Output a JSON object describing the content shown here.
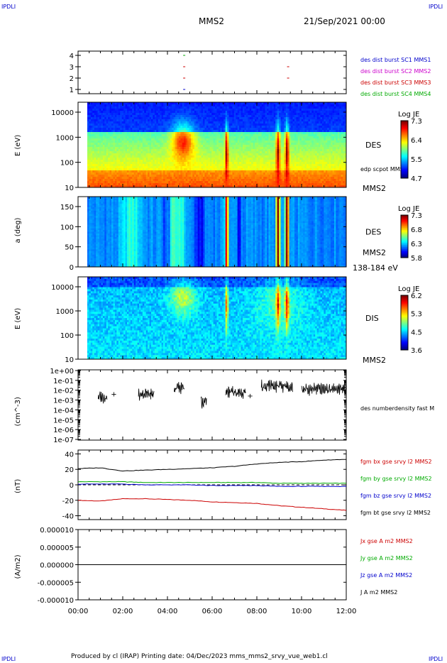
{
  "header": {
    "corner_left_top": "IPDLI",
    "corner_right_top": "IPDLI",
    "corner_left_bottom": "IPDLI",
    "corner_right_bottom": "IPDLI",
    "spacecraft": "MMS2",
    "date": "21/Sep/2021 00:00"
  },
  "footer": {
    "text": "Produced by cl (IRAP)   Printing date: 04/Dec/2023   mms_mms2_srvy_vue_web1.cl"
  },
  "colors": {
    "blue": "#0000cc",
    "magenta": "#cc00cc",
    "red": "#cc0000",
    "green": "#00aa00",
    "black": "#000000"
  },
  "chart_data": [
    {
      "type": "scatter",
      "panel": "burst",
      "y_ticks": [
        "4",
        "3",
        "2",
        "1"
      ],
      "legend": [
        {
          "label": "des dist burst SC1 MMS1",
          "color": "#0000cc"
        },
        {
          "label": "des dist burst SC2 MMS2",
          "color": "#cc00cc"
        },
        {
          "label": "des dist burst SC3 MMS3",
          "color": "#cc0000"
        },
        {
          "label": "des dist burst SC4 MMS4",
          "color": "#00aa00"
        }
      ],
      "marks": [
        {
          "t": 4.75,
          "sc": 4,
          "color": "#00aa00"
        },
        {
          "t": 4.75,
          "sc": 3,
          "color": "#cc0000"
        },
        {
          "t": 4.75,
          "sc": 2,
          "color": "#cc0000"
        },
        {
          "t": 4.75,
          "sc": 1,
          "color": "#0000cc"
        },
        {
          "t": 9.4,
          "sc": 3,
          "color": "#cc0000"
        },
        {
          "t": 9.4,
          "sc": 2,
          "color": "#cc0000"
        }
      ]
    },
    {
      "type": "heatmap",
      "panel": "des-energy",
      "ylabel": "E (eV)",
      "y_ticks": [
        "10000",
        "1000",
        "100",
        "10"
      ],
      "label_right": "DES",
      "label_right2": "edp scpot MMS2",
      "label_bottom": "MMS2",
      "colorbar": {
        "title": "Log JE",
        "ticks": [
          "7.3",
          "6.4",
          "5.5",
          "4.7"
        ]
      }
    },
    {
      "type": "heatmap",
      "panel": "des-pitch",
      "ylabel": "a (deg)",
      "y_ticks": [
        "150",
        "100",
        "50",
        "0"
      ],
      "label_right": "DES",
      "label_right2": "MMS2",
      "label_bottom": "138-184 eV",
      "colorbar": {
        "title": "Log JE",
        "ticks": [
          "7.3",
          "6.8",
          "6.3",
          "5.8"
        ]
      }
    },
    {
      "type": "heatmap",
      "panel": "dis-energy",
      "ylabel": "E (eV)",
      "y_ticks": [
        "10000",
        "1000",
        "100",
        "10"
      ],
      "label_right": "DIS",
      "label_bottom": "MMS2",
      "colorbar": {
        "title": "Log JE",
        "ticks": [
          "6.2",
          "5.3",
          "4.5",
          "3.6"
        ]
      }
    },
    {
      "type": "line",
      "panel": "density",
      "ylabel": "(cm^-3)",
      "y_ticks": [
        "1e+00",
        "1e-01",
        "1e-02",
        "1e-03",
        "1e-04",
        "1e-05",
        "1e-06",
        "1e-07"
      ],
      "series": [
        {
          "name": "des numberdensity fast M",
          "color": "#000000"
        }
      ],
      "segments": [
        {
          "start": 0.9,
          "end": 1.3,
          "log_center": -2.7
        },
        {
          "start": 2.7,
          "end": 3.4,
          "log_center": -2.4
        },
        {
          "start": 4.3,
          "end": 4.75,
          "log_center": -1.8
        },
        {
          "start": 5.5,
          "end": 5.75,
          "log_center": -3.2
        },
        {
          "start": 6.6,
          "end": 7.5,
          "log_center": -2.2
        },
        {
          "start": 8.2,
          "end": 9.6,
          "log_center": -1.6
        },
        {
          "start": 10.0,
          "end": 12.0,
          "log_center": -1.9
        }
      ],
      "crosses": [
        {
          "t": 1.6,
          "log_n": -2.4
        },
        {
          "t": 7.7,
          "log_n": -2.6
        }
      ]
    },
    {
      "type": "line",
      "panel": "magnetic-field",
      "ylabel": "(nT)",
      "ylim": [
        -45,
        45
      ],
      "y_ticks": [
        "40",
        "20",
        "0",
        "-20",
        "-40"
      ],
      "x": [
        0,
        1,
        2,
        3,
        4,
        5,
        6,
        7,
        8,
        9,
        10,
        11,
        12
      ],
      "series": [
        {
          "name": "fgm bx gse srvy l2 MMS2",
          "color": "#cc0000",
          "values": [
            -20,
            -21,
            -18,
            -18,
            -19,
            -20,
            -22,
            -23,
            -24,
            -27,
            -29,
            -31,
            -33
          ]
        },
        {
          "name": "fgm by gse srvy l2 MMS2",
          "color": "#00aa00",
          "values": [
            4,
            4,
            4,
            3,
            3,
            3,
            3,
            3,
            3,
            2,
            2,
            2,
            2
          ]
        },
        {
          "name": "fgm bz gse srvy l2 MMS2",
          "color": "#0000cc",
          "values": [
            1,
            1,
            1,
            0,
            0,
            0,
            -1,
            -1,
            -1,
            -2,
            -2,
            -2,
            -2
          ]
        },
        {
          "name": "fgm bt gse srvy l2 MMS2",
          "color": "#000000",
          "values": [
            21,
            22,
            18,
            19,
            20,
            21,
            22,
            24,
            27,
            29,
            30,
            32,
            33
          ]
        }
      ]
    },
    {
      "type": "line",
      "panel": "current",
      "ylabel": "(A/m2)",
      "ylim": [
        -1e-05,
        1e-05
      ],
      "y_ticks": [
        "0.000010",
        "0.000005",
        "0.000000",
        "-0.000005",
        "-0.000010"
      ],
      "series": [
        {
          "name": "Jx gse A m2 MMS2",
          "color": "#cc0000"
        },
        {
          "name": "Jy gse A m2 MMS2",
          "color": "#00aa00"
        },
        {
          "name": "Jz gse A m2 MMS2",
          "color": "#0000cc"
        },
        {
          "name": "J A m2 MMS2",
          "color": "#000000",
          "values": [
            0,
            0
          ]
        }
      ]
    }
  ],
  "time_axis": {
    "range_hours": [
      0,
      12
    ],
    "tick_labels": [
      "00:00",
      "02:00",
      "04:00",
      "06:00",
      "08:00",
      "10:00",
      "12:00"
    ]
  }
}
